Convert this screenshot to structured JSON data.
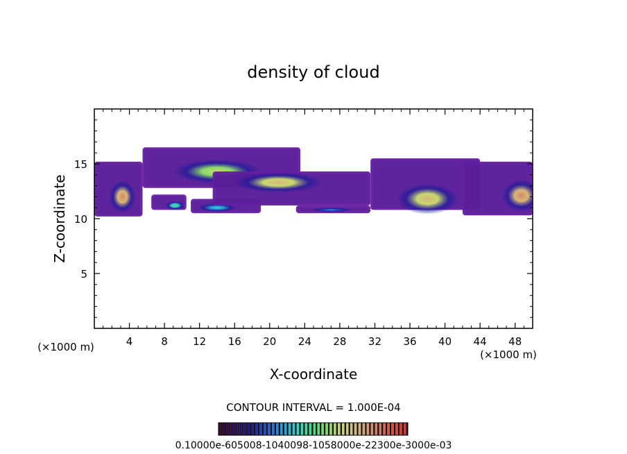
{
  "chart_data": {
    "type": "heatmap",
    "title": "density of cloud",
    "xlabel": "X-coordinate",
    "ylabel": "Z-coordinate",
    "x_unit_left": "(×1000 m)",
    "x_unit_right": "(×1000 m)",
    "xlim": [
      0,
      50
    ],
    "ylim": [
      0,
      20
    ],
    "x_ticks": [
      4,
      8,
      12,
      16,
      20,
      24,
      28,
      32,
      36,
      40,
      44,
      48
    ],
    "y_ticks": [
      5,
      10,
      15
    ],
    "contour_interval_label": "CONTOUR INTERVAL = 1.000E-04",
    "colorbar_label": "0.10000e-605008-1040098-1058000e-22300e-3000e-03",
    "colorbar_colors": [
      "#3a0a3a",
      "#2a0a6a",
      "#1a1a9a",
      "#1e4ec8",
      "#2a9ad8",
      "#3ad0c8",
      "#4ad88a",
      "#8ad86a",
      "#c8d870",
      "#d8b878",
      "#d88868",
      "#d85848",
      "#c83830"
    ],
    "cloud_regions": [
      {
        "x": [
          0,
          5.5
        ],
        "z": [
          10.2,
          15.2
        ],
        "peak": 0.00045,
        "peak_at": [
          3.2,
          12.0
        ]
      },
      {
        "x": [
          5.5,
          23.5
        ],
        "z": [
          12.8,
          16.5
        ],
        "peak": 0.00035,
        "peak_at": [
          14.0,
          14.3
        ]
      },
      {
        "x": [
          6.5,
          10.5
        ],
        "z": [
          10.8,
          12.2
        ],
        "peak": 0.00025,
        "peak_at": [
          9.2,
          11.2
        ]
      },
      {
        "x": [
          11.0,
          19.0
        ],
        "z": [
          10.5,
          11.8
        ],
        "peak": 0.0002,
        "peak_at": [
          14.0,
          11.0
        ]
      },
      {
        "x": [
          13.5,
          31.5
        ],
        "z": [
          11.2,
          14.3
        ],
        "peak": 0.0004,
        "peak_at": [
          21.0,
          13.3
        ]
      },
      {
        "x": [
          23.0,
          31.5
        ],
        "z": [
          10.5,
          11.2
        ],
        "peak": 0.00015,
        "peak_at": [
          27.0,
          10.8
        ]
      },
      {
        "x": [
          31.5,
          44.0
        ],
        "z": [
          10.8,
          15.5
        ],
        "peak": 0.0004,
        "peak_at": [
          38.0,
          11.8
        ]
      },
      {
        "x": [
          42.0,
          50.0
        ],
        "z": [
          10.3,
          15.2
        ],
        "peak": 0.00045,
        "peak_at": [
          48.7,
          12.1
        ]
      }
    ]
  }
}
